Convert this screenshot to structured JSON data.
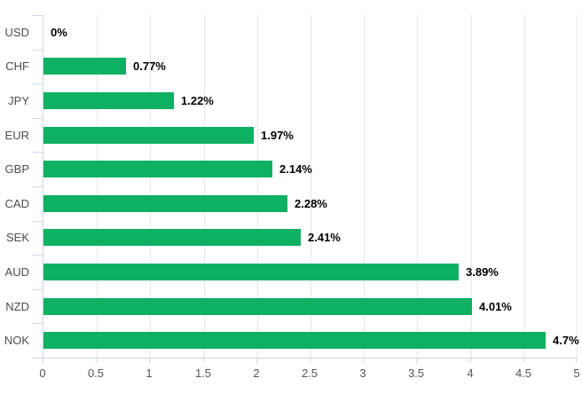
{
  "chart_data": {
    "type": "bar",
    "orientation": "horizontal",
    "title": "",
    "categories": [
      "USD",
      "CHF",
      "JPY",
      "EUR",
      "GBP",
      "CAD",
      "SEK",
      "AUD",
      "NZD",
      "NOK"
    ],
    "values": [
      0,
      0.77,
      1.22,
      1.97,
      2.14,
      2.28,
      2.41,
      3.89,
      4.01,
      4.7
    ],
    "data_labels": [
      "0%",
      "0.77%",
      "1.22%",
      "1.97%",
      "2.14%",
      "2.28%",
      "2.41%",
      "3.89%",
      "4.01%",
      "4.7%"
    ],
    "xlim": [
      0,
      5
    ],
    "x_ticks": [
      0,
      0.5,
      1,
      1.5,
      2,
      2.5,
      3,
      3.5,
      4,
      4.5,
      5
    ],
    "x_tick_labels": [
      "0",
      "0.5",
      "1",
      "1.5",
      "2",
      "2.5",
      "3",
      "3.5",
      "4",
      "4.5",
      "5"
    ],
    "grid": true,
    "legend": false,
    "colors": {
      "bar": "#0eb062",
      "grid_line": "#e6e6e6",
      "axis_line": "#ccd6eb",
      "tick": "#ccd6eb",
      "category_label": "#4d4d4d",
      "axis_label": "#555555",
      "data_label": "#000000",
      "background": "#ffffff"
    }
  }
}
